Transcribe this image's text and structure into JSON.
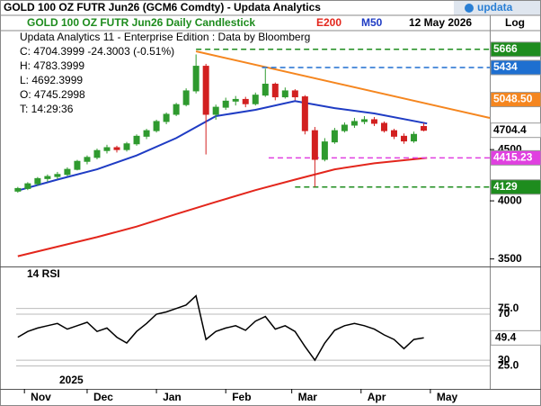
{
  "brand": "updata",
  "chart_data": [
    {
      "type": "candlestick",
      "title": "GOLD 100 OZ FUTR  Jun26 (GCM6 Comdty) -   Updata Analytics",
      "subtitle": "GOLD 100 OZ FUTR  Jun26 Daily Candlestick",
      "date": "12 May 2026",
      "scale_label": "Log",
      "log": true,
      "info": [
        "Updata Analytics 11 - Enterprise Edition : Data by Bloomberg",
        "C: 4704.3999  -24.3003  (-0.51%)",
        "H: 4783.3999",
        "L: 4692.3999",
        "O: 4745.2998",
        "T: 14:29:36"
      ],
      "up_color": "#2f9a2f",
      "down_color": "#d22020",
      "x": [
        0,
        3,
        6,
        9,
        12,
        15,
        18,
        21,
        24,
        27,
        30,
        33,
        36,
        39,
        42,
        45,
        48,
        51,
        54,
        57,
        60,
        63,
        66,
        69,
        72,
        75,
        78,
        81,
        84,
        87,
        90,
        93,
        96,
        99,
        102,
        105,
        108,
        111,
        114,
        117,
        120,
        123
      ],
      "open": [
        4090,
        4115,
        4160,
        4210,
        4230,
        4250,
        4300,
        4380,
        4420,
        4490,
        4520,
        4500,
        4560,
        4640,
        4700,
        4800,
        4880,
        4990,
        5150,
        5450,
        4880,
        4960,
        5030,
        5050,
        5000,
        5100,
        5230,
        5080,
        5150,
        5080,
        4700,
        4400,
        4580,
        4700,
        4760,
        4800,
        4820,
        4780,
        4700,
        4640,
        4590,
        4745.2998
      ],
      "high": [
        4130,
        4175,
        4225,
        4250,
        4275,
        4320,
        4395,
        4440,
        4510,
        4550,
        4540,
        4580,
        4660,
        4720,
        4820,
        4900,
        5010,
        5180,
        5600,
        5480,
        4990,
        5070,
        5090,
        5080,
        5130,
        5420,
        5250,
        5190,
        5170,
        5100,
        4740,
        4620,
        4730,
        4790,
        4840,
        4860,
        4850,
        4800,
        4720,
        4670,
        4690,
        4783.3999
      ],
      "low": [
        4075,
        4100,
        4140,
        4180,
        4205,
        4235,
        4290,
        4350,
        4400,
        4460,
        4470,
        4480,
        4540,
        4610,
        4680,
        4770,
        4860,
        4970,
        5120,
        4450,
        4820,
        4930,
        4980,
        4960,
        4980,
        5080,
        5040,
        5060,
        5040,
        4660,
        4129,
        4380,
        4560,
        4680,
        4730,
        4770,
        4750,
        4680,
        4610,
        4560,
        4570,
        4692.3999
      ],
      "close": [
        4115,
        4160,
        4210,
        4230,
        4250,
        4300,
        4380,
        4420,
        4490,
        4520,
        4500,
        4560,
        4640,
        4700,
        4800,
        4880,
        4990,
        5150,
        5450,
        4880,
        4960,
        5030,
        5050,
        5000,
        5100,
        5230,
        5080,
        5150,
        5080,
        4700,
        4400,
        4580,
        4700,
        4760,
        4800,
        4820,
        4780,
        4700,
        4640,
        4590,
        4660,
        4704.3999
      ],
      "overlays": [
        {
          "name": "E200",
          "color": "#e3261c",
          "x": [
            0,
            12,
            24,
            36,
            48,
            60,
            72,
            84,
            96,
            108,
            124
          ],
          "values": [
            3522,
            3600,
            3680,
            3770,
            3880,
            3990,
            4100,
            4200,
            4300,
            4360,
            4415.23
          ]
        },
        {
          "name": "M50",
          "color": "#1f3cc4",
          "x": [
            0,
            12,
            24,
            36,
            48,
            60,
            72,
            84,
            96,
            108,
            124
          ],
          "values": [
            4095,
            4200,
            4300,
            4440,
            4620,
            4860,
            4930,
            5030,
            4950,
            4890,
            4778
          ]
        }
      ],
      "trendline": {
        "color": "#f5861f",
        "x": [
          54,
          143
        ],
        "values": [
          5640,
          4840
        ]
      },
      "levels": [
        {
          "value": 5666,
          "label": "5666",
          "color": "#1e8c1e",
          "text_color": "#ffffff",
          "start": 54,
          "dashed": true
        },
        {
          "value": 5434,
          "label": "5434",
          "color": "#1e6fd0",
          "text_color": "#ffffff",
          "start": 74,
          "dashed": true
        },
        {
          "value": 5048.5,
          "label": "5048.50",
          "color": "#f5861f",
          "text_color": "#ffffff",
          "dashed": false
        },
        {
          "value": 4704.4,
          "label": "4704.4",
          "color": "#ffffff",
          "text_color": "#000000",
          "dashed": false
        },
        {
          "value": 4415.23,
          "label": "4415.23",
          "color": "#e040e0",
          "text_color": "#ffffff",
          "start": 76,
          "dashed": true
        },
        {
          "value": 4129,
          "label": "4129",
          "color": "#1e8c1e",
          "text_color": "#ffffff",
          "start": 84,
          "dashed": true
        }
      ],
      "xlim": [
        -0.5,
        143
      ],
      "xticks": [
        {
          "value": 2,
          "label": "Nov"
        },
        {
          "value": 21,
          "label": "Dec"
        },
        {
          "value": 42,
          "label": "Jan"
        },
        {
          "value": 63,
          "label": "Feb"
        },
        {
          "value": 83,
          "label": "Mar"
        },
        {
          "value": 104,
          "label": "Apr"
        },
        {
          "value": 125,
          "label": "May"
        }
      ],
      "year_label": "2025",
      "ylim": [
        3440,
        5915
      ],
      "yticks": [
        3500,
        4000,
        4500
      ]
    },
    {
      "type": "line",
      "title": "14 RSI",
      "color": "#000000",
      "x": [
        0,
        3,
        6,
        9,
        12,
        15,
        18,
        21,
        24,
        27,
        30,
        33,
        36,
        39,
        42,
        45,
        48,
        51,
        54,
        57,
        60,
        63,
        66,
        69,
        72,
        75,
        78,
        81,
        84,
        87,
        90,
        93,
        96,
        99,
        102,
        105,
        108,
        111,
        114,
        117,
        120,
        123
      ],
      "values": [
        50,
        55,
        58,
        60,
        62,
        57,
        60,
        63,
        55,
        58,
        50,
        45,
        55,
        62,
        70,
        72,
        75,
        78,
        86,
        48,
        55,
        58,
        60,
        56,
        64,
        68,
        57,
        60,
        55,
        42,
        30,
        45,
        56,
        60,
        62,
        60,
        57,
        52,
        48,
        40,
        48,
        49.4
      ],
      "xlim": [
        -0.5,
        143
      ],
      "ylim": [
        5,
        110
      ],
      "yticks": [
        {
          "value": 25,
          "label": "25.0"
        },
        30,
        70,
        {
          "value": 75,
          "label": "75.0"
        }
      ],
      "grid": true
    }
  ]
}
